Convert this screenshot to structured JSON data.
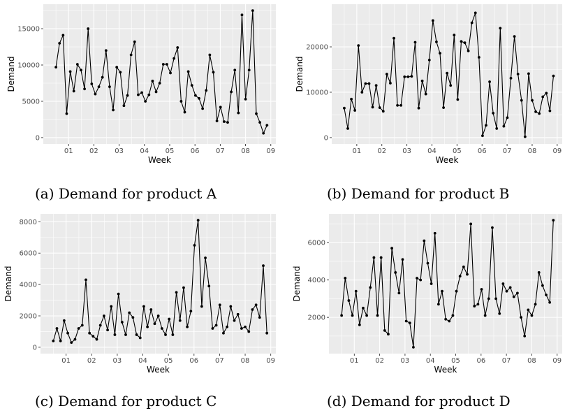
{
  "captions": {
    "a": "(a) Demand for product A",
    "b": "(b) Demand for product B",
    "c": "(c) Demand for product C",
    "d": "(d) Demand for product D"
  },
  "chart_data": [
    {
      "id": "a",
      "type": "line",
      "xlabel": "Week",
      "ylabel": "Demand",
      "x_ticks": [
        "01",
        "02",
        "03",
        "04",
        "05",
        "06",
        "07",
        "08",
        "09"
      ],
      "y_ticks": [
        "0",
        "5000",
        "10000",
        "15000"
      ],
      "ylim": [
        0,
        17500
      ],
      "values": [
        9700,
        13000,
        14100,
        3300,
        9100,
        6400,
        10100,
        9300,
        6700,
        15000,
        7400,
        6000,
        7000,
        8300,
        12000,
        7000,
        3800,
        9700,
        9000,
        4400,
        5800,
        11400,
        13200,
        5900,
        6200,
        5000,
        5900,
        7800,
        6300,
        7500,
        10100,
        10100,
        8900,
        10900,
        12400,
        5000,
        3500,
        9100,
        7200,
        5800,
        5400,
        4000,
        6500,
        11400,
        9000,
        2300,
        4200,
        2200,
        2100,
        6300,
        9300,
        3400,
        16900,
        5300,
        9300,
        17500,
        3300,
        2100,
        600,
        1700
      ],
      "point_color": "#000000"
    },
    {
      "id": "b",
      "type": "line",
      "xlabel": "Week",
      "ylabel": "Demand",
      "x_ticks": [
        "01",
        "02",
        "03",
        "04",
        "05",
        "06",
        "07",
        "08",
        "09"
      ],
      "y_ticks": [
        "0",
        "10000",
        "20000"
      ],
      "ylim": [
        0,
        28000
      ],
      "values": [
        6500,
        2000,
        8500,
        6000,
        20300,
        10000,
        11900,
        11900,
        6700,
        11500,
        6600,
        5800,
        14000,
        12000,
        21900,
        7100,
        7100,
        13400,
        13400,
        13500,
        21000,
        6500,
        12500,
        9600,
        17100,
        25800,
        21100,
        18600,
        6600,
        14200,
        11500,
        22600,
        8400,
        21200,
        20900,
        19100,
        25300,
        27500,
        17700,
        400,
        2700,
        12300,
        5400,
        2000,
        24100,
        2500,
        4400,
        13100,
        22300,
        14000,
        8200,
        200,
        14100,
        8200,
        5700,
        5300,
        9000,
        9800,
        5900,
        13600
      ],
      "point_color": "#000000"
    },
    {
      "id": "c",
      "type": "line",
      "xlabel": "Week",
      "ylabel": "Demand",
      "x_ticks": [
        "01",
        "02",
        "03",
        "04",
        "05",
        "06",
        "07",
        "08",
        "09"
      ],
      "y_ticks": [
        "0",
        "2000",
        "4000",
        "6000",
        "8000"
      ],
      "ylim": [
        0,
        8100
      ],
      "values": [
        400,
        1200,
        400,
        1700,
        900,
        300,
        500,
        1200,
        1400,
        4300,
        900,
        700,
        500,
        1400,
        2000,
        1100,
        2600,
        800,
        3400,
        1600,
        800,
        2200,
        1900,
        800,
        600,
        2600,
        1300,
        2400,
        1500,
        2000,
        1200,
        800,
        1800,
        800,
        3500,
        1700,
        3800,
        1300,
        2300,
        6500,
        8100,
        2600,
        5700,
        3900,
        1200,
        1400,
        2700,
        900,
        1300,
        2600,
        1700,
        2100,
        1200,
        1300,
        1000,
        2400,
        2700,
        1900,
        5200,
        900
      ],
      "point_color": "#000000"
    },
    {
      "id": "d",
      "type": "line",
      "xlabel": "Week",
      "ylabel": "Demand",
      "x_ticks": [
        "01",
        "02",
        "03",
        "04",
        "05",
        "06",
        "07",
        "08",
        "09"
      ],
      "y_ticks": [
        "2000",
        "4000",
        "6000"
      ],
      "ylim": [
        400,
        7200
      ],
      "values": [
        2100,
        4100,
        2900,
        2100,
        3400,
        1600,
        2500,
        2100,
        3600,
        5200,
        2100,
        5200,
        1300,
        1100,
        5700,
        4400,
        3300,
        5100,
        1800,
        1700,
        400,
        4100,
        4000,
        6100,
        4900,
        3800,
        6500,
        2700,
        3400,
        1900,
        1800,
        2100,
        3400,
        4200,
        4700,
        4300,
        7000,
        2600,
        2700,
        3500,
        2100,
        3000,
        6800,
        3000,
        2200,
        3800,
        3400,
        3600,
        3100,
        3300,
        2000,
        1000,
        2400,
        2100,
        2700,
        4400,
        3700,
        3200,
        2800,
        7200
      ],
      "point_color": "#000000"
    }
  ]
}
